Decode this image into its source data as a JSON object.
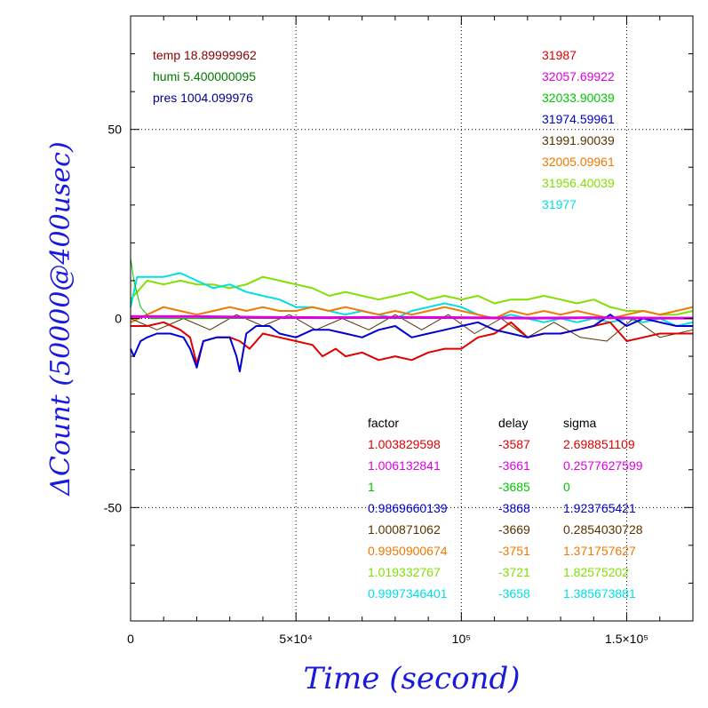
{
  "chart_data": {
    "type": "line",
    "xlabel": "Time (second)",
    "ylabel": "ΔCount (50000@400usec)",
    "xlim": [
      0,
      170000
    ],
    "ylim": [
      -80,
      80
    ],
    "x_ticks": [
      {
        "value": 0,
        "label": "0"
      },
      {
        "value": 50000,
        "label": "5×10⁴"
      },
      {
        "value": 100000,
        "label": "10⁵"
      },
      {
        "value": 150000,
        "label": "1.5×10⁵"
      }
    ],
    "y_ticks": [
      {
        "value": 50,
        "label": "50"
      },
      {
        "value": 0,
        "label": "0"
      },
      {
        "value": -50,
        "label": "-50"
      }
    ],
    "grid": true,
    "env_readings": [
      {
        "text": "temp 18.89999962",
        "color": "#8b0000"
      },
      {
        "text": "humi 5.400000095",
        "color": "#007a00"
      },
      {
        "text": "pres 1004.099976",
        "color": "#00008b"
      }
    ],
    "table_headers": {
      "factor": "factor",
      "delay": "delay",
      "sigma": "sigma"
    },
    "series": [
      {
        "color": "#e00000",
        "mean": "31987",
        "factor": "1.003829598",
        "delay": "-3587",
        "sigma": "2.698851109",
        "x": [
          0,
          5000,
          10000,
          15000,
          18000,
          20000,
          22000,
          26000,
          30000,
          33000,
          36000,
          40000,
          45000,
          50000,
          55000,
          58000,
          62000,
          65000,
          70000,
          75000,
          80000,
          85000,
          90000,
          95000,
          100000,
          105000,
          110000,
          115000,
          120000,
          125000,
          130000,
          135000,
          140000,
          145000,
          150000,
          155000,
          160000,
          165000,
          170000
        ],
        "y": [
          -2,
          -2,
          -1,
          -3,
          -5,
          -12,
          -6,
          -5,
          -5,
          -6,
          -8,
          -4,
          -5,
          -6,
          -7,
          -10,
          -8,
          -10,
          -9,
          -11,
          -10,
          -11,
          -9,
          -8,
          -8,
          -5,
          -4,
          -1,
          -5,
          -4,
          -4,
          -3,
          -2,
          -1,
          -6,
          -5,
          -4,
          -4,
          -4
        ]
      },
      {
        "color": "#e000e0",
        "mean": "32057.69922",
        "factor": "1.006132841",
        "delay": "-3661",
        "sigma": "0.2577627599",
        "x": [
          0,
          20000,
          40000,
          60000,
          80000,
          100000,
          120000,
          140000,
          160000,
          170000
        ],
        "y": [
          0.5,
          0.5,
          0.3,
          0.2,
          0.3,
          0.2,
          0.1,
          0.2,
          0.1,
          0.1
        ]
      },
      {
        "color": "#00c800",
        "mean": "32033.90039",
        "factor": "1",
        "delay": "-3685",
        "sigma": "0",
        "x": [
          0,
          1000,
          3000,
          6000,
          10000,
          20000,
          40000,
          60000,
          80000,
          100000,
          120000,
          140000,
          170000
        ],
        "y": [
          16,
          10,
          3,
          0,
          0,
          0,
          0,
          0,
          0,
          0,
          0,
          0,
          0
        ]
      },
      {
        "color": "#0000d0",
        "mean": "31974.59961",
        "factor": "0.9869660139",
        "delay": "-3868",
        "sigma": "1.923765421",
        "x": [
          0,
          1000,
          3000,
          5000,
          8000,
          12000,
          16000,
          18000,
          20000,
          22000,
          26000,
          30000,
          32000,
          33000,
          35000,
          38000,
          42000,
          45000,
          50000,
          55000,
          60000,
          65000,
          70000,
          75000,
          80000,
          85000,
          90000,
          95000,
          100000,
          105000,
          110000,
          115000,
          120000,
          125000,
          130000,
          135000,
          140000,
          145000,
          150000,
          155000,
          160000,
          165000,
          170000
        ],
        "y": [
          -8,
          -10,
          -6,
          -5,
          -4,
          -4,
          -5,
          -8,
          -13,
          -6,
          -5,
          -5,
          -10,
          -14,
          -4,
          -2,
          -2,
          -4,
          -5,
          -3,
          -3,
          -4,
          -5,
          -3,
          -2,
          -5,
          -4,
          -3,
          -2,
          -1,
          -3,
          -4,
          -5,
          -4,
          -4,
          -3,
          -2,
          1,
          -2,
          0,
          -1,
          -2,
          -2
        ]
      },
      {
        "color": "#5a3200",
        "mean": "31991.90039",
        "factor": "1.000871062",
        "delay": "-3669",
        "sigma": "0.2854030728",
        "x": [
          0,
          8000,
          16000,
          24000,
          32000,
          40000,
          48000,
          56000,
          64000,
          72000,
          80000,
          88000,
          96000,
          104000,
          112000,
          120000,
          128000,
          136000,
          144000,
          152000,
          160000,
          170000
        ],
        "y": [
          0,
          -3,
          0,
          -3,
          1,
          -2,
          1,
          -3,
          0,
          -3,
          1,
          -3,
          1,
          -4,
          0,
          -5,
          -1,
          -5,
          -6,
          0,
          -5,
          -3
        ]
      },
      {
        "color": "#f07800",
        "mean": "32005.09961",
        "factor": "0.9950900674",
        "delay": "-3751",
        "sigma": "1.371757627",
        "x": [
          0,
          5000,
          10000,
          15000,
          20000,
          25000,
          30000,
          35000,
          40000,
          45000,
          50000,
          55000,
          60000,
          65000,
          70000,
          75000,
          80000,
          85000,
          90000,
          95000,
          100000,
          105000,
          110000,
          115000,
          120000,
          125000,
          130000,
          135000,
          140000,
          145000,
          150000,
          155000,
          160000,
          165000,
          170000
        ],
        "y": [
          -1,
          1,
          3,
          2,
          1,
          2,
          3,
          2,
          3,
          2,
          2,
          3,
          2,
          3,
          2,
          1,
          2,
          1,
          2,
          3,
          2,
          1,
          0,
          2,
          1,
          2,
          1,
          2,
          1,
          0,
          1,
          2,
          1,
          2,
          3
        ]
      },
      {
        "color": "#80e000",
        "mean": "31956.40039",
        "factor": "1.019332767",
        "delay": "-3721",
        "sigma": "1.82575202",
        "x": [
          0,
          5000,
          10000,
          15000,
          20000,
          25000,
          30000,
          35000,
          40000,
          45000,
          50000,
          55000,
          60000,
          65000,
          70000,
          75000,
          80000,
          85000,
          90000,
          95000,
          100000,
          105000,
          110000,
          115000,
          120000,
          125000,
          130000,
          135000,
          140000,
          145000,
          150000,
          155000,
          160000,
          165000,
          170000
        ],
        "y": [
          5,
          10,
          9,
          10,
          9,
          9,
          8,
          9,
          11,
          10,
          9,
          8,
          6,
          7,
          6,
          5,
          6,
          7,
          5,
          6,
          5,
          6,
          4,
          5,
          5,
          6,
          5,
          4,
          5,
          3,
          2,
          2,
          1,
          1,
          2
        ]
      },
      {
        "color": "#00e0e0",
        "mean": "31977",
        "factor": "0.9997346401",
        "delay": "-3658",
        "sigma": "1.385673881",
        "x": [
          0,
          2000,
          5000,
          10000,
          15000,
          20000,
          25000,
          30000,
          35000,
          40000,
          45000,
          50000,
          55000,
          60000,
          65000,
          70000,
          75000,
          80000,
          85000,
          90000,
          95000,
          100000,
          105000,
          110000,
          115000,
          120000,
          125000,
          130000,
          135000,
          140000,
          145000,
          150000,
          155000,
          160000,
          165000,
          170000
        ],
        "y": [
          3,
          11,
          11,
          11,
          12,
          10,
          8,
          9,
          7,
          6,
          5,
          3,
          3,
          2,
          1,
          2,
          1,
          0,
          2,
          3,
          4,
          3,
          1,
          0,
          1,
          0,
          -1,
          0,
          -1,
          0,
          -1,
          0,
          -1,
          0,
          -2,
          -1
        ]
      }
    ]
  }
}
